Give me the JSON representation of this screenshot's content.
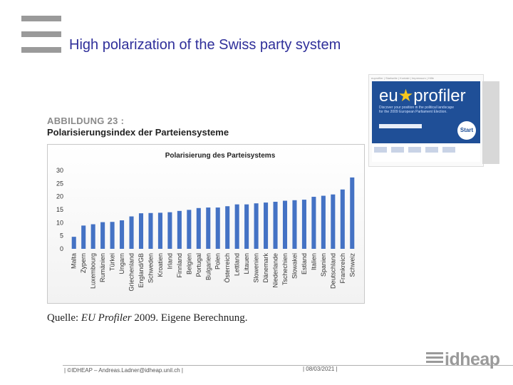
{
  "slide": {
    "title": "High polarization of the Swiss party system"
  },
  "figure": {
    "caption_line1": "ABBILDUNG 23 :",
    "caption_line2": "Polarisierungsindex der Parteiensysteme",
    "source_prefix": "Quelle: ",
    "source_italic": "EU Profiler",
    "source_suffix": " 2009. Eigene Berechnung."
  },
  "chart_data": {
    "type": "bar",
    "title": "Polarisierung des Parteisystems",
    "categories": [
      "Malta",
      "Zypern",
      "Luxembourg",
      "Rumänien",
      "Türkei",
      "Ungarn",
      "Griechenland",
      "England/GB",
      "Schweden",
      "Kroatien",
      "Irland",
      "Finnland",
      "Belgien",
      "Portugal",
      "Bulgarien",
      "Polen",
      "Österreich",
      "Lettland",
      "Litauen",
      "Slowenien",
      "Dänemark",
      "Niederlande",
      "Tschechien",
      "Slowakei",
      "Estland",
      "Italien",
      "Spanien",
      "Deutschland",
      "Frankreich",
      "Schweiz"
    ],
    "values": [
      4.6,
      8.9,
      9.4,
      10.2,
      10.3,
      10.9,
      12.4,
      13.6,
      13.7,
      13.8,
      14.0,
      14.5,
      14.9,
      15.6,
      15.8,
      15.8,
      16.3,
      17.0,
      17.0,
      17.4,
      17.7,
      18.0,
      18.4,
      18.6,
      18.8,
      19.9,
      20.3,
      20.8,
      22.7,
      27.3
    ],
    "yticks": [
      0,
      5,
      10,
      15,
      20,
      25,
      30
    ],
    "ylim": [
      0,
      30
    ],
    "bar_color": "#4472c4",
    "grid": false
  },
  "euprofiler": {
    "topline": "euprofiler | Startseite | Kontakt | Impressum | Hilfe",
    "logo_a": "eu",
    "logo_b": "profiler",
    "tagline": "Discover your position in the political landscape for the 2009 European Parliament Election.",
    "start_label": "Start"
  },
  "footer": {
    "left": "| ©IDHEAP – Andreas.Ladner@idheap.unil.ch |",
    "mid": "| 08/03/2021 |",
    "logo": "idheap"
  }
}
